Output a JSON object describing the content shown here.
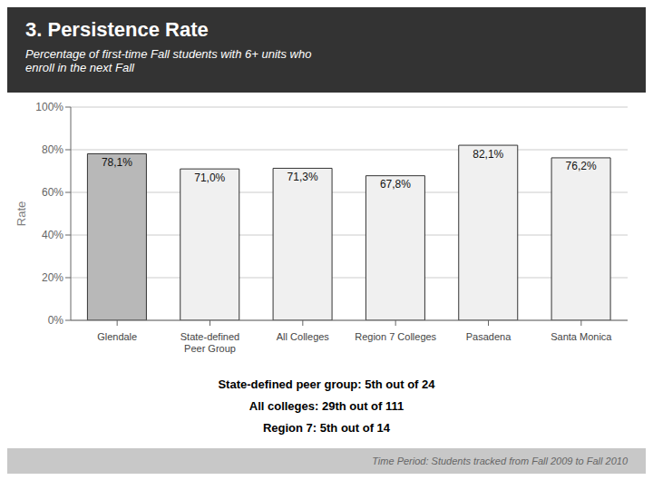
{
  "chart_data": {
    "type": "bar",
    "title": "3. Persistence Rate",
    "subtitle": "Percentage of first-time Fall students with 6+ units who\nenroll in the next Fall",
    "categories": [
      "Glendale",
      "State-defined\nPeer Group",
      "All Colleges",
      "Region 7 Colleges",
      "Pasadena",
      "Santa Monica"
    ],
    "values": [
      78.1,
      71.0,
      71.3,
      67.8,
      82.1,
      76.2
    ],
    "value_labels": [
      "78,1%",
      "71,0%",
      "71,3%",
      "67,8%",
      "82,1%",
      "76,2%"
    ],
    "data_labels": true,
    "colors": [
      "#b8b8b8",
      "#f0f0f0",
      "#f0f0f0",
      "#f0f0f0",
      "#f0f0f0",
      "#f0f0f0"
    ],
    "ylabel": "Rate",
    "ylim": [
      0,
      100
    ],
    "yticks": [
      {
        "value": 0,
        "label": "0%"
      },
      {
        "value": 20,
        "label": "20%"
      },
      {
        "value": 40,
        "label": "40%"
      },
      {
        "value": 60,
        "label": "60%"
      },
      {
        "value": 80,
        "label": "80%"
      },
      {
        "value": 100,
        "label": "100%"
      }
    ],
    "grid": true,
    "annotations": [
      "State-defined peer group: 5th out of 24",
      "All colleges: 29th out of 111",
      "Region 7: 5th out of 14",
      "Time Period: Students tracked from Fall 2009 to Fall 2010"
    ]
  }
}
